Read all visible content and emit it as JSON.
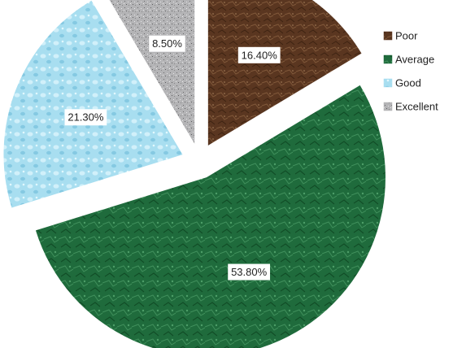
{
  "chart_data": {
    "type": "pie",
    "title": "",
    "categories": [
      "Poor",
      "Average",
      "Good",
      "Excellent"
    ],
    "values": [
      16.4,
      53.8,
      21.3,
      8.5
    ],
    "value_labels": [
      "16.40%",
      "53.80%",
      "21.30%",
      "8.50%"
    ],
    "colors": [
      "#5a3620",
      "#1f6b3c",
      "#a8def0",
      "#b4b4b6"
    ],
    "exploded": true,
    "legend_position": "right"
  }
}
